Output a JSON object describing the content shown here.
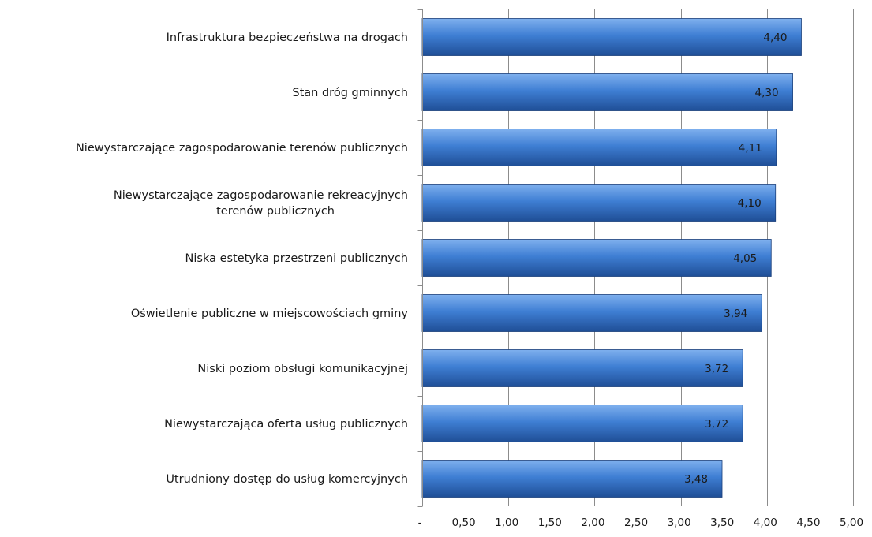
{
  "chart_data": {
    "type": "bar",
    "orientation": "horizontal",
    "categories": [
      "Infrastruktura bezpieczeństwa na drogach",
      "Stan dróg gminnych",
      "Niewystarczające zagospodarowanie terenów publicznych",
      "Niewystarczające zagospodarowanie rekreacyjnych terenów publicznych",
      "Niska estetyka przestrzeni publicznych",
      "Oświetlenie publiczne w miejscowościach gminy",
      "Niski poziom obsługi komunikacyjnej",
      "Niewystarczająca oferta usług publicznych",
      "Utrudniony dostęp do usług komercyjnych"
    ],
    "category_lines": [
      [
        "Infrastruktura bezpieczeństwa na drogach"
      ],
      [
        "Stan dróg gminnych"
      ],
      [
        "Niewystarczające zagospodarowanie terenów publicznych"
      ],
      [
        "Niewystarczające zagospodarowanie rekreacyjnych",
        "terenów publicznych"
      ],
      [
        "Niska estetyka przestrzeni publicznych"
      ],
      [
        "Oświetlenie publiczne w miejscowościach gminy"
      ],
      [
        "Niski poziom obsługi komunikacyjnej"
      ],
      [
        "Niewystarczająca oferta usług publicznych"
      ],
      [
        "Utrudniony dostęp do usług komercyjnych"
      ]
    ],
    "values": [
      4.4,
      4.3,
      4.11,
      4.1,
      4.05,
      3.94,
      3.72,
      3.72,
      3.48
    ],
    "data_labels": [
      "4,40",
      "4,30",
      "4,11",
      "4,10",
      "4,05",
      "3,94",
      "3,72",
      "3,72",
      "3,48"
    ],
    "xlim": [
      0,
      5
    ],
    "x_ticks": [
      0,
      0.5,
      1,
      1.5,
      2,
      2.5,
      3,
      3.5,
      4,
      4.5,
      5
    ],
    "x_tick_labels": [
      "-",
      "0,50",
      "1,00",
      "1,50",
      "2,00",
      "2,50",
      "3,00",
      "3,50",
      "4,00",
      "4,50",
      "5,00"
    ],
    "grid": true,
    "legend": "none",
    "title": "",
    "xlabel": "",
    "ylabel": "",
    "colors": {
      "bar_dark": "#1f4e96",
      "bar_mid": "#3f7fd4",
      "bar_light": "#7fb0ee",
      "bar_edge": "#1a3f7a",
      "grid": "#8c8c8c",
      "axis": "#8c8c8c",
      "text": "#1a1a1a"
    }
  }
}
